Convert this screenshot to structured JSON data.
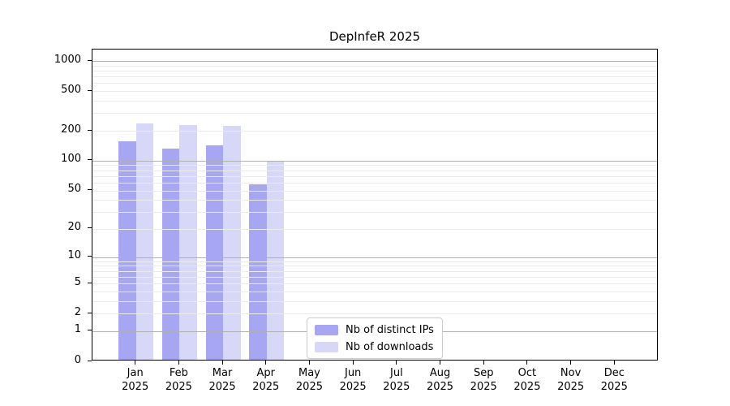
{
  "title": "DepInfeR 2025",
  "year_label": "2025",
  "legend": {
    "items": [
      {
        "label": "Nb of distinct IPs",
        "color": "#a6a6f3"
      },
      {
        "label": "Nb of downloads",
        "color": "#d7d7f8"
      }
    ]
  },
  "chart_data": {
    "type": "bar",
    "title": "DepInfeR 2025",
    "categories": [
      "Jan 2025",
      "Feb 2025",
      "Mar 2025",
      "Apr 2025",
      "May 2025",
      "Jun 2025",
      "Jul 2025",
      "Aug 2025",
      "Sep 2025",
      "Oct 2025",
      "Nov 2025",
      "Dec 2025"
    ],
    "month_labels": [
      "Jan",
      "Feb",
      "Mar",
      "Apr",
      "May",
      "Jun",
      "Jul",
      "Aug",
      "Sep",
      "Oct",
      "Nov",
      "Dec"
    ],
    "series": [
      {
        "name": "Nb of distinct IPs",
        "color": "#a6a6f3",
        "values": [
          150,
          128,
          138,
          56,
          0,
          0,
          0,
          0,
          0,
          0,
          0,
          0
        ]
      },
      {
        "name": "Nb of downloads",
        "color": "#d7d7f8",
        "values": [
          227,
          221,
          217,
          95,
          0,
          0,
          0,
          0,
          0,
          0,
          0,
          0
        ]
      }
    ],
    "xlabel": "",
    "ylabel": "",
    "yscale": "log1p",
    "ylim": [
      0,
      1300
    ],
    "yticks": [
      0,
      1,
      2,
      5,
      10,
      20,
      50,
      100,
      200,
      500,
      1000
    ],
    "grid_major": [
      1,
      10,
      100,
      1000
    ],
    "grid": "horizontal, major and log-minor lines drawn over bars",
    "legend_position": "inside bottom-center-left"
  },
  "colors": {
    "grid_major": "#b0b0b0",
    "grid_minor": "#ebebeb",
    "axis": "#000000",
    "background": "#ffffff"
  }
}
